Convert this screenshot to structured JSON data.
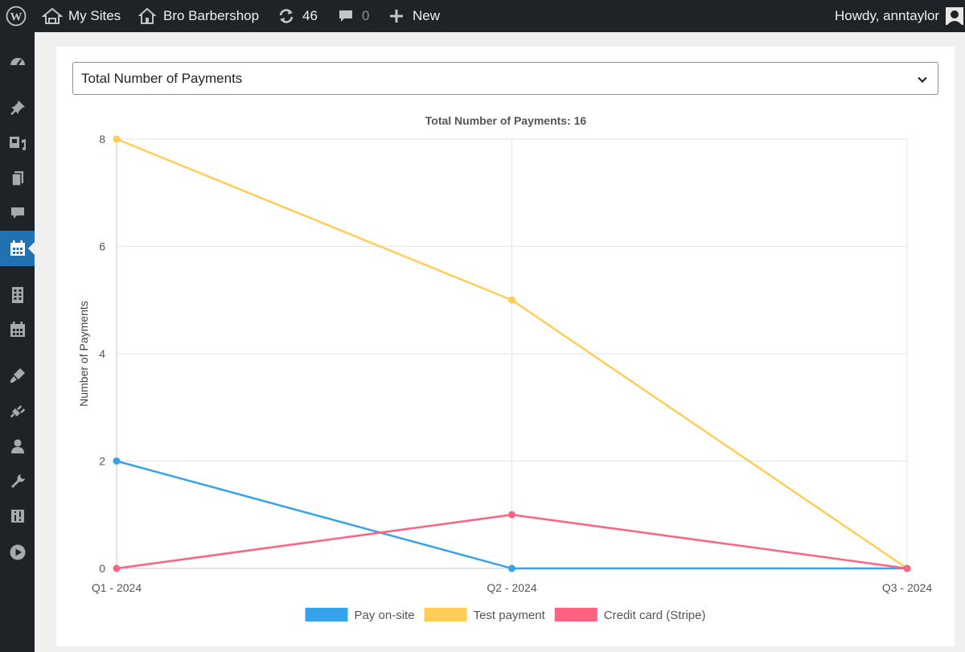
{
  "adminbar": {
    "wp_logo": "wordpress-logo",
    "my_sites": "My Sites",
    "site_name": "Bro Barbershop",
    "updates_count": "46",
    "comments_count": "0",
    "new_label": "New",
    "howdy": "Howdy, anntaylor"
  },
  "sidebar": {
    "items": [
      {
        "icon": "dashboard-icon"
      },
      {
        "icon": "pin-icon"
      },
      {
        "icon": "media-icon"
      },
      {
        "icon": "pages-icon"
      },
      {
        "icon": "comments-icon"
      },
      {
        "icon": "calendar-icon",
        "active": true
      },
      {
        "icon": "building-icon"
      },
      {
        "icon": "calendar-grid-icon"
      },
      {
        "icon": "appearance-icon"
      },
      {
        "icon": "plugins-icon"
      },
      {
        "icon": "users-icon"
      },
      {
        "icon": "tools-icon"
      },
      {
        "icon": "settings-icon"
      },
      {
        "icon": "play-icon"
      }
    ]
  },
  "report": {
    "selected": "Total Number of Payments"
  },
  "colors": {
    "pay_on_site": "#36a2eb",
    "test_payment": "#ffcd56",
    "credit_card": "#ff6384"
  },
  "chart_data": {
    "type": "line",
    "title": "Total Number of Payments: 16",
    "xlabel": "",
    "ylabel": "Number of Payments",
    "categories": [
      "Q1 - 2024",
      "Q2 - 2024",
      "Q3 - 2024"
    ],
    "ylim": [
      0,
      8
    ],
    "yticks": [
      0,
      2,
      4,
      6,
      8
    ],
    "grid": true,
    "legend_position": "bottom",
    "series": [
      {
        "name": "Pay on-site",
        "values": [
          2,
          0,
          0
        ],
        "color": "#36a2eb"
      },
      {
        "name": "Test payment",
        "values": [
          8,
          5,
          0
        ],
        "color": "#ffcd56"
      },
      {
        "name": "Credit card (Stripe)",
        "values": [
          0,
          1,
          0
        ],
        "color": "#ff6384"
      }
    ]
  }
}
